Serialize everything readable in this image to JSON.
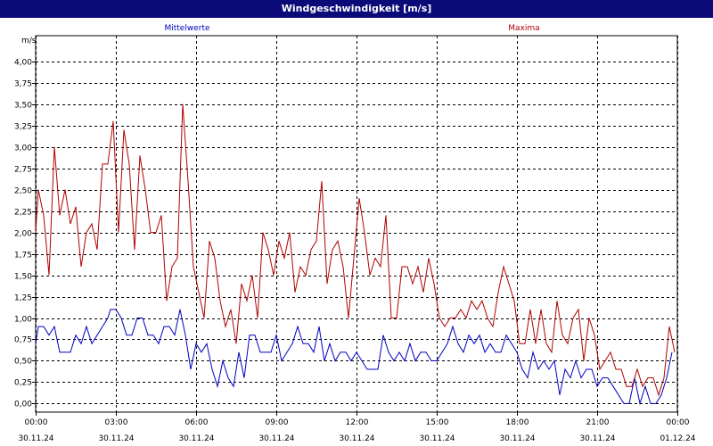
{
  "window": {
    "title": "Windgeschwindigkeit [m/s]"
  },
  "chart_data": {
    "type": "line",
    "title": "Windgeschwindigkeit [m/s]",
    "ylabel": "m/s",
    "xlabel": "",
    "ylim": [
      -0.1,
      4.3
    ],
    "xlim": [
      0,
      24
    ],
    "grid": true,
    "legend_placement": "top",
    "yticks": [
      {
        "value": 0.0,
        "label": "0,00"
      },
      {
        "value": 0.25,
        "label": "0,25"
      },
      {
        "value": 0.5,
        "label": "0,50"
      },
      {
        "value": 0.75,
        "label": "0,75"
      },
      {
        "value": 1.0,
        "label": "1,00"
      },
      {
        "value": 1.25,
        "label": "1,25"
      },
      {
        "value": 1.5,
        "label": "1,50"
      },
      {
        "value": 1.75,
        "label": "1,75"
      },
      {
        "value": 2.0,
        "label": "2,00"
      },
      {
        "value": 2.25,
        "label": "2,25"
      },
      {
        "value": 2.5,
        "label": "2,50"
      },
      {
        "value": 2.75,
        "label": "2,75"
      },
      {
        "value": 3.0,
        "label": "3,00"
      },
      {
        "value": 3.25,
        "label": "3,25"
      },
      {
        "value": 3.5,
        "label": "3,50"
      },
      {
        "value": 3.75,
        "label": "3,75"
      },
      {
        "value": 4.0,
        "label": "4,00"
      }
    ],
    "xticks": [
      {
        "value": 0,
        "time": "00:00",
        "date": "30.11.24"
      },
      {
        "value": 3,
        "time": "03:00",
        "date": "30.11.24"
      },
      {
        "value": 6,
        "time": "06:00",
        "date": "30.11.24"
      },
      {
        "value": 9,
        "time": "09:00",
        "date": "30.11.24"
      },
      {
        "value": 12,
        "time": "12:00",
        "date": "30.11.24"
      },
      {
        "value": 15,
        "time": "15:00",
        "date": "30.11.24"
      },
      {
        "value": 18,
        "time": "18:00",
        "date": "30.11.24"
      },
      {
        "value": 21,
        "time": "21:00",
        "date": "30.11.24"
      },
      {
        "value": 24,
        "time": "00:00",
        "date": "01.12.24"
      }
    ],
    "series": [
      {
        "name": "Mittelwerte",
        "color": "#0000c0",
        "points": [
          [
            0.0,
            0.7
          ],
          [
            0.1,
            0.9
          ],
          [
            0.3,
            0.9
          ],
          [
            0.5,
            0.8
          ],
          [
            0.7,
            0.9
          ],
          [
            0.9,
            0.6
          ],
          [
            1.1,
            0.6
          ],
          [
            1.3,
            0.6
          ],
          [
            1.5,
            0.8
          ],
          [
            1.7,
            0.7
          ],
          [
            1.9,
            0.9
          ],
          [
            2.1,
            0.7
          ],
          [
            2.3,
            0.8
          ],
          [
            2.5,
            0.9
          ],
          [
            2.7,
            1.0
          ],
          [
            2.8,
            1.1
          ],
          [
            3.0,
            1.1
          ],
          [
            3.2,
            1.0
          ],
          [
            3.4,
            0.8
          ],
          [
            3.6,
            0.8
          ],
          [
            3.8,
            1.0
          ],
          [
            4.0,
            1.0
          ],
          [
            4.2,
            0.8
          ],
          [
            4.4,
            0.8
          ],
          [
            4.6,
            0.7
          ],
          [
            4.8,
            0.9
          ],
          [
            5.0,
            0.9
          ],
          [
            5.2,
            0.8
          ],
          [
            5.4,
            1.1
          ],
          [
            5.6,
            0.8
          ],
          [
            5.8,
            0.4
          ],
          [
            6.0,
            0.7
          ],
          [
            6.2,
            0.6
          ],
          [
            6.4,
            0.7
          ],
          [
            6.6,
            0.4
          ],
          [
            6.8,
            0.2
          ],
          [
            7.0,
            0.5
          ],
          [
            7.2,
            0.3
          ],
          [
            7.4,
            0.2
          ],
          [
            7.6,
            0.6
          ],
          [
            7.8,
            0.3
          ],
          [
            8.0,
            0.8
          ],
          [
            8.2,
            0.8
          ],
          [
            8.4,
            0.6
          ],
          [
            8.6,
            0.6
          ],
          [
            8.8,
            0.6
          ],
          [
            9.0,
            0.8
          ],
          [
            9.2,
            0.5
          ],
          [
            9.4,
            0.6
          ],
          [
            9.6,
            0.7
          ],
          [
            9.8,
            0.9
          ],
          [
            10.0,
            0.7
          ],
          [
            10.2,
            0.7
          ],
          [
            10.4,
            0.6
          ],
          [
            10.6,
            0.9
          ],
          [
            10.8,
            0.5
          ],
          [
            11.0,
            0.7
          ],
          [
            11.2,
            0.5
          ],
          [
            11.4,
            0.6
          ],
          [
            11.6,
            0.6
          ],
          [
            11.8,
            0.5
          ],
          [
            12.0,
            0.6
          ],
          [
            12.2,
            0.5
          ],
          [
            12.4,
            0.4
          ],
          [
            12.6,
            0.4
          ],
          [
            12.8,
            0.4
          ],
          [
            13.0,
            0.8
          ],
          [
            13.2,
            0.6
          ],
          [
            13.4,
            0.5
          ],
          [
            13.6,
            0.6
          ],
          [
            13.8,
            0.5
          ],
          [
            14.0,
            0.7
          ],
          [
            14.2,
            0.5
          ],
          [
            14.4,
            0.6
          ],
          [
            14.6,
            0.6
          ],
          [
            14.8,
            0.5
          ],
          [
            15.0,
            0.5
          ],
          [
            15.2,
            0.6
          ],
          [
            15.4,
            0.7
          ],
          [
            15.6,
            0.9
          ],
          [
            15.8,
            0.7
          ],
          [
            16.0,
            0.6
          ],
          [
            16.2,
            0.8
          ],
          [
            16.4,
            0.7
          ],
          [
            16.6,
            0.8
          ],
          [
            16.8,
            0.6
          ],
          [
            17.0,
            0.7
          ],
          [
            17.2,
            0.6
          ],
          [
            17.4,
            0.6
          ],
          [
            17.6,
            0.8
          ],
          [
            17.8,
            0.7
          ],
          [
            18.0,
            0.6
          ],
          [
            18.2,
            0.4
          ],
          [
            18.4,
            0.3
          ],
          [
            18.6,
            0.6
          ],
          [
            18.8,
            0.4
          ],
          [
            19.0,
            0.5
          ],
          [
            19.2,
            0.4
          ],
          [
            19.4,
            0.5
          ],
          [
            19.6,
            0.1
          ],
          [
            19.8,
            0.4
          ],
          [
            20.0,
            0.3
          ],
          [
            20.2,
            0.5
          ],
          [
            20.4,
            0.3
          ],
          [
            20.6,
            0.4
          ],
          [
            20.8,
            0.4
          ],
          [
            21.0,
            0.2
          ],
          [
            21.2,
            0.3
          ],
          [
            21.4,
            0.3
          ],
          [
            21.6,
            0.2
          ],
          [
            21.8,
            0.1
          ],
          [
            22.0,
            0.0
          ],
          [
            22.2,
            0.0
          ],
          [
            22.4,
            0.3
          ],
          [
            22.6,
            0.0
          ],
          [
            22.8,
            0.2
          ],
          [
            23.0,
            0.0
          ],
          [
            23.2,
            0.0
          ],
          [
            23.4,
            0.1
          ],
          [
            23.6,
            0.3
          ],
          [
            23.8,
            0.6
          ]
        ]
      },
      {
        "name": "Maxima",
        "color": "#b00000",
        "points": [
          [
            0.0,
            2.0
          ],
          [
            0.1,
            2.5
          ],
          [
            0.3,
            2.2
          ],
          [
            0.5,
            1.5
          ],
          [
            0.7,
            3.0
          ],
          [
            0.9,
            2.2
          ],
          [
            1.1,
            2.5
          ],
          [
            1.3,
            2.1
          ],
          [
            1.5,
            2.3
          ],
          [
            1.7,
            1.6
          ],
          [
            1.9,
            2.0
          ],
          [
            2.1,
            2.1
          ],
          [
            2.3,
            1.8
          ],
          [
            2.5,
            2.8
          ],
          [
            2.7,
            2.8
          ],
          [
            2.9,
            3.3
          ],
          [
            3.1,
            2.0
          ],
          [
            3.3,
            3.2
          ],
          [
            3.5,
            2.8
          ],
          [
            3.7,
            1.8
          ],
          [
            3.9,
            2.9
          ],
          [
            4.1,
            2.5
          ],
          [
            4.3,
            2.0
          ],
          [
            4.5,
            2.0
          ],
          [
            4.7,
            2.2
          ],
          [
            4.9,
            1.2
          ],
          [
            5.1,
            1.6
          ],
          [
            5.3,
            1.7
          ],
          [
            5.5,
            3.5
          ],
          [
            5.7,
            2.6
          ],
          [
            5.9,
            1.6
          ],
          [
            6.1,
            1.3
          ],
          [
            6.3,
            1.0
          ],
          [
            6.5,
            1.9
          ],
          [
            6.7,
            1.7
          ],
          [
            6.9,
            1.2
          ],
          [
            7.1,
            0.9
          ],
          [
            7.3,
            1.1
          ],
          [
            7.5,
            0.7
          ],
          [
            7.7,
            1.4
          ],
          [
            7.9,
            1.2
          ],
          [
            8.1,
            1.5
          ],
          [
            8.3,
            1.0
          ],
          [
            8.5,
            2.0
          ],
          [
            8.7,
            1.8
          ],
          [
            8.9,
            1.5
          ],
          [
            9.1,
            1.9
          ],
          [
            9.3,
            1.7
          ],
          [
            9.5,
            2.0
          ],
          [
            9.7,
            1.3
          ],
          [
            9.9,
            1.6
          ],
          [
            10.1,
            1.5
          ],
          [
            10.3,
            1.8
          ],
          [
            10.5,
            1.9
          ],
          [
            10.7,
            2.6
          ],
          [
            10.9,
            1.4
          ],
          [
            11.1,
            1.8
          ],
          [
            11.3,
            1.9
          ],
          [
            11.5,
            1.6
          ],
          [
            11.7,
            1.0
          ],
          [
            11.9,
            1.7
          ],
          [
            12.1,
            2.4
          ],
          [
            12.3,
            2.0
          ],
          [
            12.5,
            1.5
          ],
          [
            12.7,
            1.7
          ],
          [
            12.9,
            1.6
          ],
          [
            13.1,
            2.2
          ],
          [
            13.3,
            1.0
          ],
          [
            13.5,
            1.0
          ],
          [
            13.7,
            1.6
          ],
          [
            13.9,
            1.6
          ],
          [
            14.1,
            1.4
          ],
          [
            14.3,
            1.6
          ],
          [
            14.5,
            1.3
          ],
          [
            14.7,
            1.7
          ],
          [
            14.9,
            1.4
          ],
          [
            15.1,
            1.0
          ],
          [
            15.3,
            0.9
          ],
          [
            15.5,
            1.0
          ],
          [
            15.7,
            1.0
          ],
          [
            15.9,
            1.1
          ],
          [
            16.1,
            1.0
          ],
          [
            16.3,
            1.2
          ],
          [
            16.5,
            1.1
          ],
          [
            16.7,
            1.2
          ],
          [
            16.9,
            1.0
          ],
          [
            17.1,
            0.9
          ],
          [
            17.3,
            1.3
          ],
          [
            17.5,
            1.6
          ],
          [
            17.7,
            1.4
          ],
          [
            17.9,
            1.2
          ],
          [
            18.1,
            0.7
          ],
          [
            18.3,
            0.7
          ],
          [
            18.5,
            1.1
          ],
          [
            18.7,
            0.7
          ],
          [
            18.9,
            1.1
          ],
          [
            19.1,
            0.7
          ],
          [
            19.3,
            0.6
          ],
          [
            19.5,
            1.2
          ],
          [
            19.7,
            0.8
          ],
          [
            19.9,
            0.7
          ],
          [
            20.1,
            1.0
          ],
          [
            20.3,
            1.1
          ],
          [
            20.5,
            0.5
          ],
          [
            20.7,
            1.0
          ],
          [
            20.9,
            0.8
          ],
          [
            21.1,
            0.4
          ],
          [
            21.3,
            0.5
          ],
          [
            21.5,
            0.6
          ],
          [
            21.7,
            0.4
          ],
          [
            21.9,
            0.4
          ],
          [
            22.1,
            0.2
          ],
          [
            22.3,
            0.2
          ],
          [
            22.5,
            0.4
          ],
          [
            22.7,
            0.2
          ],
          [
            22.9,
            0.3
          ],
          [
            23.1,
            0.3
          ],
          [
            23.3,
            0.1
          ],
          [
            23.5,
            0.3
          ],
          [
            23.7,
            0.9
          ],
          [
            23.9,
            0.6
          ]
        ]
      }
    ]
  }
}
